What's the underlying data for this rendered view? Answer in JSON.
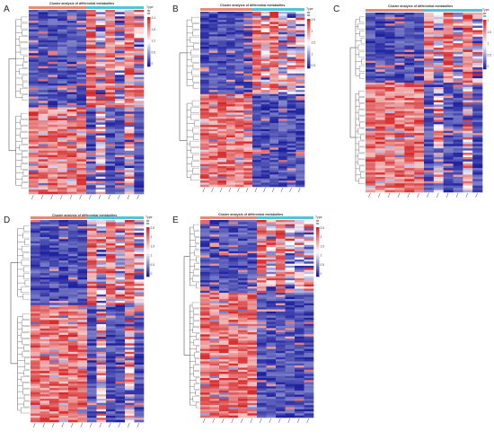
{
  "figure": {
    "panels": [
      {
        "letter": "A",
        "title": "Cluster analysis of differential metabolites"
      },
      {
        "letter": "B",
        "title": "Cluster analysis of differential metabolites"
      },
      {
        "letter": "C",
        "title": "Cluster analysis of differential metabolites"
      },
      {
        "letter": "D",
        "title": "Cluster analysis of differential metabolites"
      },
      {
        "letter": "E",
        "title": "Cluster analysis of differential metabolites"
      }
    ]
  },
  "colors": {
    "high": "#d62728",
    "mid": "#ffffff",
    "low": "#1c1f9e",
    "group1": "#e58a77",
    "group2": "#4fc6d6"
  },
  "chart_data": [
    {
      "type": "heatmap",
      "panel": "A",
      "title": "Cluster analysis of differential metabolites",
      "legend_title": "Type",
      "legend_placement": "top-right",
      "colorbar_ticks": [
        "2.4",
        "1.8",
        "1.2",
        "0.6",
        "0"
      ],
      "columns": 12,
      "groups": [
        {
          "columns": 6
        },
        {
          "columns": 6
        }
      ],
      "row_clusters": [
        {
          "rows": 45,
          "pattern": [
            "low",
            "low",
            "low",
            "low",
            "low",
            "low",
            "high",
            "mix",
            "high",
            "mix",
            "high",
            "mix"
          ]
        },
        {
          "rows": 40,
          "pattern": [
            "high",
            "high",
            "high",
            "high",
            "high",
            "high",
            "low",
            "mix",
            "low",
            "low",
            "mix",
            "low"
          ]
        }
      ]
    },
    {
      "type": "heatmap",
      "panel": "B",
      "title": "Cluster analysis of differential metabolites",
      "legend_title": "Type",
      "legend_placement": "top-right",
      "colorbar_ticks": [
        "2.5",
        "2",
        "1.5",
        "1",
        "0.5"
      ],
      "columns": 12,
      "groups": [
        {
          "columns": 6
        },
        {
          "columns": 6
        }
      ],
      "row_clusters": [
        {
          "rows": 40,
          "pattern": [
            "low",
            "low",
            "low",
            "low",
            "low",
            "low",
            "high",
            "mix",
            "high",
            "mix",
            "mix",
            "mix"
          ]
        },
        {
          "rows": 45,
          "pattern": [
            "high",
            "high",
            "high",
            "high",
            "high",
            "high",
            "low",
            "low",
            "low",
            "low",
            "low",
            "low"
          ]
        }
      ]
    },
    {
      "type": "heatmap",
      "panel": "C",
      "title": "Cluster analysis of differential metabolites",
      "legend_title": "Type",
      "legend_placement": "top-right",
      "colorbar_ticks": [
        "2",
        "1.5",
        "1",
        "0.5",
        "0"
      ],
      "columns": 12,
      "groups": [
        {
          "columns": 6
        },
        {
          "columns": 6
        }
      ],
      "row_clusters": [
        {
          "rows": 32,
          "pattern": [
            "low",
            "low",
            "low",
            "low",
            "low",
            "low",
            "high",
            "mix",
            "high",
            "mix",
            "high",
            "mix"
          ]
        },
        {
          "rows": 50,
          "pattern": [
            "high",
            "high",
            "high",
            "high",
            "high",
            "high",
            "low",
            "mix",
            "low",
            "low",
            "mix",
            "low"
          ]
        }
      ]
    },
    {
      "type": "heatmap",
      "panel": "D",
      "title": "Cluster analysis of differential metabolites",
      "legend_title": "Type",
      "legend_placement": "top-right",
      "colorbar_ticks": [
        "2.5",
        "2",
        "1.5",
        "1",
        "0.5",
        "0"
      ],
      "columns": 12,
      "groups": [
        {
          "columns": 6
        },
        {
          "columns": 6
        }
      ],
      "row_clusters": [
        {
          "rows": 40,
          "pattern": [
            "low",
            "low",
            "low",
            "low",
            "low",
            "low",
            "high",
            "mix",
            "high",
            "mix",
            "high",
            "mix"
          ]
        },
        {
          "rows": 55,
          "pattern": [
            "high",
            "high",
            "high",
            "high",
            "high",
            "high",
            "low",
            "mix",
            "low",
            "low",
            "mix",
            "low"
          ]
        }
      ]
    },
    {
      "type": "heatmap",
      "panel": "E",
      "title": "Cluster analysis of differential metabolites",
      "legend_title": "Type",
      "legend_placement": "top-right",
      "colorbar_ticks": [
        "2.5",
        "2",
        "1.5",
        "1",
        "0.5",
        "0"
      ],
      "columns": 12,
      "groups": [
        {
          "columns": 6
        },
        {
          "columns": 6
        }
      ],
      "row_clusters": [
        {
          "rows": 35,
          "pattern": [
            "low",
            "low",
            "low",
            "low",
            "low",
            "low",
            "high",
            "mix",
            "high",
            "mix",
            "mix",
            "mix"
          ]
        },
        {
          "rows": 60,
          "pattern": [
            "high",
            "high",
            "high",
            "high",
            "high",
            "high",
            "low",
            "low",
            "low",
            "low",
            "low",
            "low"
          ]
        }
      ]
    }
  ]
}
